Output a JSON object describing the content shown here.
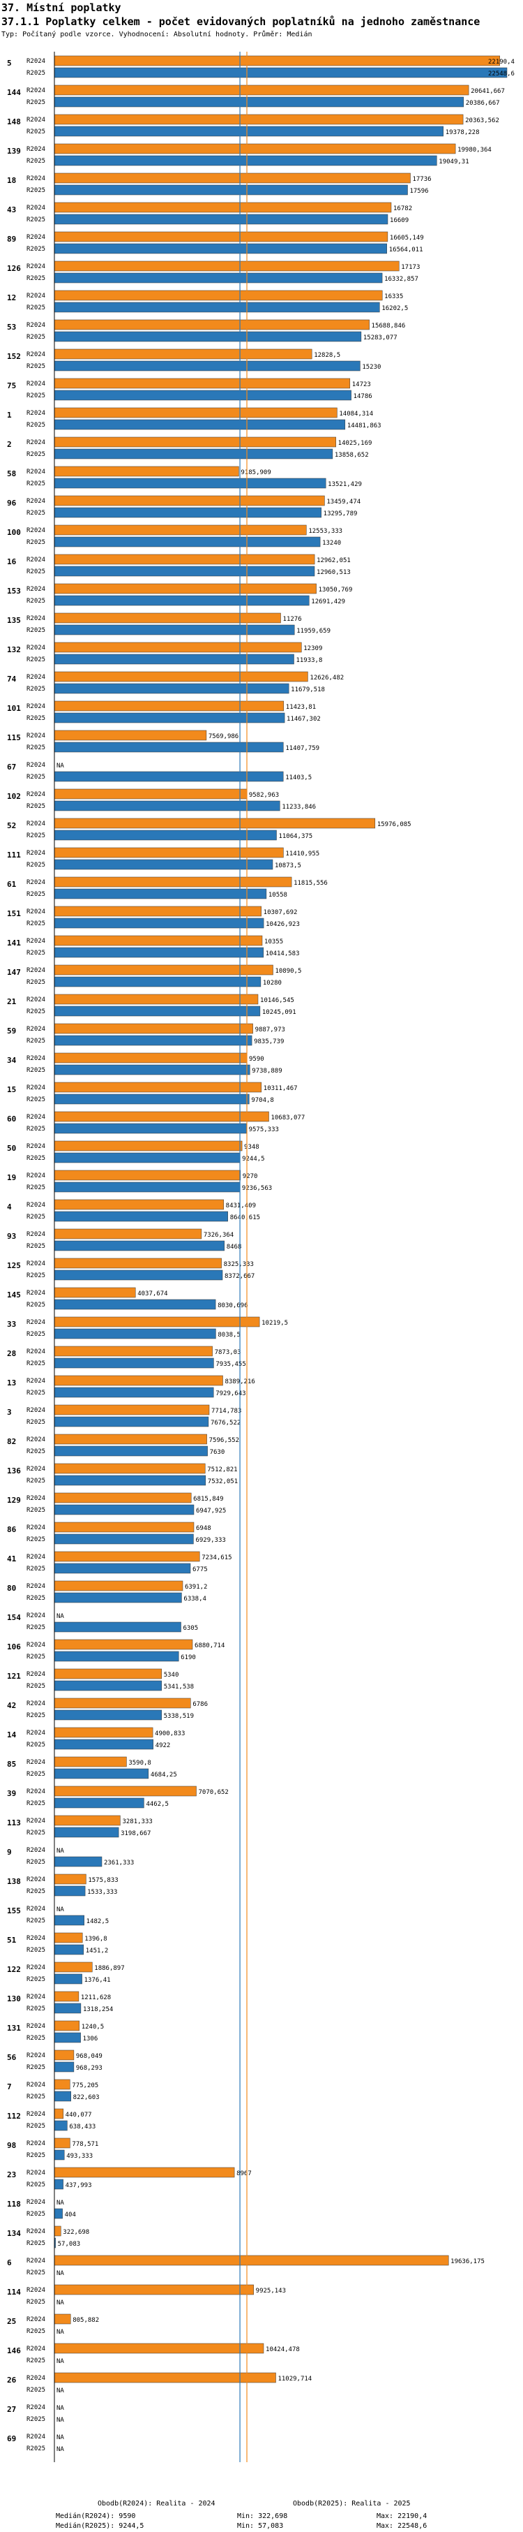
{
  "page": {
    "section_title": "37. Místní poplatky",
    "chart_title": "37.1.1 Poplatky celkem - počet evidovaných poplatníků na jednoho zaměstnance",
    "subtitle": "Typ: Počítaný podle vzorce. Vyhodnocení: Absolutní hodnoty. Průměr: Medián"
  },
  "colors": {
    "r2024": "#f28a1c",
    "r2025": "#2a78b8",
    "median2024": "#f28a1c",
    "median2025": "#2a78b8",
    "axis": "#000000"
  },
  "footer": {
    "legend2024": "Obodb(R2024): Realita - 2024",
    "legend2025": "Obodb(R2025): Realita - 2025",
    "median2024": "Medián(R2024): 9590",
    "median2025": "Medián(R2025): 9244,5",
    "min2024": "Min: 322,698",
    "min2025": "Min: 57,083",
    "max2024": "Max: 22190,4",
    "max2025": "Max: 22548,6"
  },
  "chart_data": {
    "type": "bar",
    "orientation": "horizontal",
    "title": "37.1.1 Poplatky celkem - počet evidovaných poplatníků na jednoho zaměstnance",
    "series_names": [
      "R2024",
      "R2025"
    ],
    "xlim": [
      0,
      22548.6
    ],
    "medians": {
      "R2024": 9590,
      "R2025": 9244.5
    },
    "groups": [
      {
        "id": "5",
        "r2024": 22190.4,
        "l2024": "22190,4",
        "r2025": 22548.6,
        "l2025": "22548,6"
      },
      {
        "id": "144",
        "r2024": 20641.667,
        "l2024": "20641,667",
        "r2025": 20386.667,
        "l2025": "20386,667"
      },
      {
        "id": "148",
        "r2024": 20363.562,
        "l2024": "20363,562",
        "r2025": 19378.228,
        "l2025": "19378,228"
      },
      {
        "id": "139",
        "r2024": 19980.364,
        "l2024": "19980,364",
        "r2025": 19049.31,
        "l2025": "19049,31"
      },
      {
        "id": "18",
        "r2024": 17736,
        "l2024": "17736",
        "r2025": 17596,
        "l2025": "17596"
      },
      {
        "id": "43",
        "r2024": 16782,
        "l2024": "16782",
        "r2025": 16609,
        "l2025": "16609"
      },
      {
        "id": "89",
        "r2024": 16605.149,
        "l2024": "16605,149",
        "r2025": 16564.011,
        "l2025": "16564,011"
      },
      {
        "id": "126",
        "r2024": 17173,
        "l2024": "17173",
        "r2025": 16332.857,
        "l2025": "16332,857"
      },
      {
        "id": "12",
        "r2024": 16335,
        "l2024": "16335",
        "r2025": 16202.5,
        "l2025": "16202,5"
      },
      {
        "id": "53",
        "r2024": 15688.846,
        "l2024": "15688,846",
        "r2025": 15283.077,
        "l2025": "15283,077"
      },
      {
        "id": "152",
        "r2024": 12828.5,
        "l2024": "12828,5",
        "r2025": 15230,
        "l2025": "15230"
      },
      {
        "id": "75",
        "r2024": 14723,
        "l2024": "14723",
        "r2025": 14786,
        "l2025": "14786"
      },
      {
        "id": "1",
        "r2024": 14084.314,
        "l2024": "14084,314",
        "r2025": 14481.863,
        "l2025": "14481,863"
      },
      {
        "id": "2",
        "r2024": 14025.169,
        "l2024": "14025,169",
        "r2025": 13858.652,
        "l2025": "13858,652"
      },
      {
        "id": "58",
        "r2024": 9185.909,
        "l2024": "9185,909",
        "r2025": 13521.429,
        "l2025": "13521,429"
      },
      {
        "id": "96",
        "r2024": 13459.474,
        "l2024": "13459,474",
        "r2025": 13295.789,
        "l2025": "13295,789"
      },
      {
        "id": "100",
        "r2024": 12553.333,
        "l2024": "12553,333",
        "r2025": 13240,
        "l2025": "13240"
      },
      {
        "id": "16",
        "r2024": 12962.051,
        "l2024": "12962,051",
        "r2025": 12960.513,
        "l2025": "12960,513"
      },
      {
        "id": "153",
        "r2024": 13050.769,
        "l2024": "13050,769",
        "r2025": 12691.429,
        "l2025": "12691,429"
      },
      {
        "id": "135",
        "r2024": 11276,
        "l2024": "11276",
        "r2025": 11959.659,
        "l2025": "11959,659"
      },
      {
        "id": "132",
        "r2024": 12309,
        "l2024": "12309",
        "r2025": 11933.8,
        "l2025": "11933,8"
      },
      {
        "id": "74",
        "r2024": 12626.482,
        "l2024": "12626,482",
        "r2025": 11679.518,
        "l2025": "11679,518"
      },
      {
        "id": "101",
        "r2024": 11423.81,
        "l2024": "11423,81",
        "r2025": 11467.302,
        "l2025": "11467,302"
      },
      {
        "id": "115",
        "r2024": 7569.986,
        "l2024": "7569,986",
        "r2025": 11407.759,
        "l2025": "11407,759"
      },
      {
        "id": "67",
        "r2024": null,
        "l2024": "NA",
        "r2025": 11403.5,
        "l2025": "11403,5"
      },
      {
        "id": "102",
        "r2024": 9582.963,
        "l2024": "9582,963",
        "r2025": 11233.846,
        "l2025": "11233,846"
      },
      {
        "id": "52",
        "r2024": 15976.085,
        "l2024": "15976,085",
        "r2025": 11064.375,
        "l2025": "11064,375"
      },
      {
        "id": "111",
        "r2024": 11410.955,
        "l2024": "11410,955",
        "r2025": 10873.5,
        "l2025": "10873,5"
      },
      {
        "id": "61",
        "r2024": 11815.556,
        "l2024": "11815,556",
        "r2025": 10558,
        "l2025": "10558"
      },
      {
        "id": "151",
        "r2024": 10307.692,
        "l2024": "10307,692",
        "r2025": 10426.923,
        "l2025": "10426,923"
      },
      {
        "id": "141",
        "r2024": 10355,
        "l2024": "10355",
        "r2025": 10414.583,
        "l2025": "10414,583"
      },
      {
        "id": "147",
        "r2024": 10890.5,
        "l2024": "10890,5",
        "r2025": 10280,
        "l2025": "10280"
      },
      {
        "id": "21",
        "r2024": 10146.545,
        "l2024": "10146,545",
        "r2025": 10245.091,
        "l2025": "10245,091"
      },
      {
        "id": "59",
        "r2024": 9887.973,
        "l2024": "9887,973",
        "r2025": 9835.739,
        "l2025": "9835,739"
      },
      {
        "id": "34",
        "r2024": 9590,
        "l2024": "9590",
        "r2025": 9738.889,
        "l2025": "9738,889"
      },
      {
        "id": "15",
        "r2024": 10311.467,
        "l2024": "10311,467",
        "r2025": 9704.8,
        "l2025": "9704,8"
      },
      {
        "id": "60",
        "r2024": 10683.077,
        "l2024": "10683,077",
        "r2025": 9575.333,
        "l2025": "9575,333"
      },
      {
        "id": "50",
        "r2024": 9348,
        "l2024": "9348",
        "r2025": 9244.5,
        "l2025": "9244,5"
      },
      {
        "id": "19",
        "r2024": 9270,
        "l2024": "9270",
        "r2025": 9236.563,
        "l2025": "9236,563"
      },
      {
        "id": "4",
        "r2024": 8431.409,
        "l2024": "8431,409",
        "r2025": 8640.615,
        "l2025": "8640,615"
      },
      {
        "id": "93",
        "r2024": 7326.364,
        "l2024": "7326,364",
        "r2025": 8468,
        "l2025": "8468"
      },
      {
        "id": "125",
        "r2024": 8325.333,
        "l2024": "8325,333",
        "r2025": 8372.667,
        "l2025": "8372,667"
      },
      {
        "id": "145",
        "r2024": 4037.674,
        "l2024": "4037,674",
        "r2025": 8030.696,
        "l2025": "8030,696"
      },
      {
        "id": "33",
        "r2024": 10219.5,
        "l2024": "10219,5",
        "r2025": 8038.5,
        "l2025": "8038,5"
      },
      {
        "id": "28",
        "r2024": 7873.03,
        "l2024": "7873,03",
        "r2025": 7935.455,
        "l2025": "7935,455"
      },
      {
        "id": "13",
        "r2024": 8389.216,
        "l2024": "8389,216",
        "r2025": 7929.643,
        "l2025": "7929,643"
      },
      {
        "id": "3",
        "r2024": 7714.783,
        "l2024": "7714,783",
        "r2025": 7676.522,
        "l2025": "7676,522"
      },
      {
        "id": "82",
        "r2024": 7596.552,
        "l2024": "7596,552",
        "r2025": 7630,
        "l2025": "7630"
      },
      {
        "id": "136",
        "r2024": 7512.821,
        "l2024": "7512,821",
        "r2025": 7532.051,
        "l2025": "7532,051"
      },
      {
        "id": "129",
        "r2024": 6815.849,
        "l2024": "6815,849",
        "r2025": 6947.925,
        "l2025": "6947,925"
      },
      {
        "id": "86",
        "r2024": 6948,
        "l2024": "6948",
        "r2025": 6929.333,
        "l2025": "6929,333"
      },
      {
        "id": "41",
        "r2024": 7234.615,
        "l2024": "7234,615",
        "r2025": 6775,
        "l2025": "6775"
      },
      {
        "id": "80",
        "r2024": 6391.2,
        "l2024": "6391,2",
        "r2025": 6338.4,
        "l2025": "6338,4"
      },
      {
        "id": "154",
        "r2024": null,
        "l2024": "NA",
        "r2025": 6305,
        "l2025": "6305"
      },
      {
        "id": "106",
        "r2024": 6880.714,
        "l2024": "6880,714",
        "r2025": 6190,
        "l2025": "6190"
      },
      {
        "id": "121",
        "r2024": 5340,
        "l2024": "5340",
        "r2025": 5341.538,
        "l2025": "5341,538"
      },
      {
        "id": "42",
        "r2024": 6786,
        "l2024": "6786",
        "r2025": 5338.519,
        "l2025": "5338,519"
      },
      {
        "id": "14",
        "r2024": 4900.833,
        "l2024": "4900,833",
        "r2025": 4922,
        "l2025": "4922"
      },
      {
        "id": "85",
        "r2024": 3590.8,
        "l2024": "3590,8",
        "r2025": 4684.25,
        "l2025": "4684,25"
      },
      {
        "id": "39",
        "r2024": 7070.652,
        "l2024": "7070,652",
        "r2025": 4462.5,
        "l2025": "4462,5"
      },
      {
        "id": "113",
        "r2024": 3281.333,
        "l2024": "3281,333",
        "r2025": 3198.667,
        "l2025": "3198,667"
      },
      {
        "id": "9",
        "r2024": null,
        "l2024": "NA",
        "r2025": 2361.333,
        "l2025": "2361,333"
      },
      {
        "id": "138",
        "r2024": 1575.833,
        "l2024": "1575,833",
        "r2025": 1533.333,
        "l2025": "1533,333"
      },
      {
        "id": "155",
        "r2024": null,
        "l2024": "NA",
        "r2025": 1482.5,
        "l2025": "1482,5"
      },
      {
        "id": "51",
        "r2024": 1396.8,
        "l2024": "1396,8",
        "r2025": 1451.2,
        "l2025": "1451,2"
      },
      {
        "id": "122",
        "r2024": 1886.897,
        "l2024": "1886,897",
        "r2025": 1376.41,
        "l2025": "1376,41"
      },
      {
        "id": "130",
        "r2024": 1211.628,
        "l2024": "1211,628",
        "r2025": 1318.254,
        "l2025": "1318,254"
      },
      {
        "id": "131",
        "r2024": 1240.5,
        "l2024": "1240,5",
        "r2025": 1306,
        "l2025": "1306"
      },
      {
        "id": "56",
        "r2024": 968.049,
        "l2024": "968,049",
        "r2025": 968.293,
        "l2025": "968,293"
      },
      {
        "id": "7",
        "r2024": 775.205,
        "l2024": "775,205",
        "r2025": 822.603,
        "l2025": "822,603"
      },
      {
        "id": "112",
        "r2024": 440.077,
        "l2024": "440,077",
        "r2025": 638.433,
        "l2025": "638,433"
      },
      {
        "id": "98",
        "r2024": 778.571,
        "l2024": "778,571",
        "r2025": 493.333,
        "l2025": "493,333"
      },
      {
        "id": "23",
        "r2024": 8967,
        "l2024": "8967",
        "r2025": 437.993,
        "l2025": "437,993"
      },
      {
        "id": "118",
        "r2024": null,
        "l2024": "NA",
        "r2025": 404,
        "l2025": "404"
      },
      {
        "id": "134",
        "r2024": 322.698,
        "l2024": "322,698",
        "r2025": 57.083,
        "l2025": "57,083"
      },
      {
        "id": "6",
        "r2024": 19636.175,
        "l2024": "19636,175",
        "r2025": null,
        "l2025": "NA"
      },
      {
        "id": "114",
        "r2024": 9925.143,
        "l2024": "9925,143",
        "r2025": null,
        "l2025": "NA"
      },
      {
        "id": "25",
        "r2024": 805.882,
        "l2024": "805,882",
        "r2025": null,
        "l2025": "NA"
      },
      {
        "id": "146",
        "r2024": 10424.478,
        "l2024": "10424,478",
        "r2025": null,
        "l2025": "NA"
      },
      {
        "id": "26",
        "r2024": 11029.714,
        "l2024": "11029,714",
        "r2025": null,
        "l2025": "NA"
      },
      {
        "id": "27",
        "r2024": null,
        "l2024": "NA",
        "r2025": null,
        "l2025": "NA"
      },
      {
        "id": "69",
        "r2024": null,
        "l2024": "NA",
        "r2025": null,
        "l2025": "NA"
      }
    ]
  }
}
